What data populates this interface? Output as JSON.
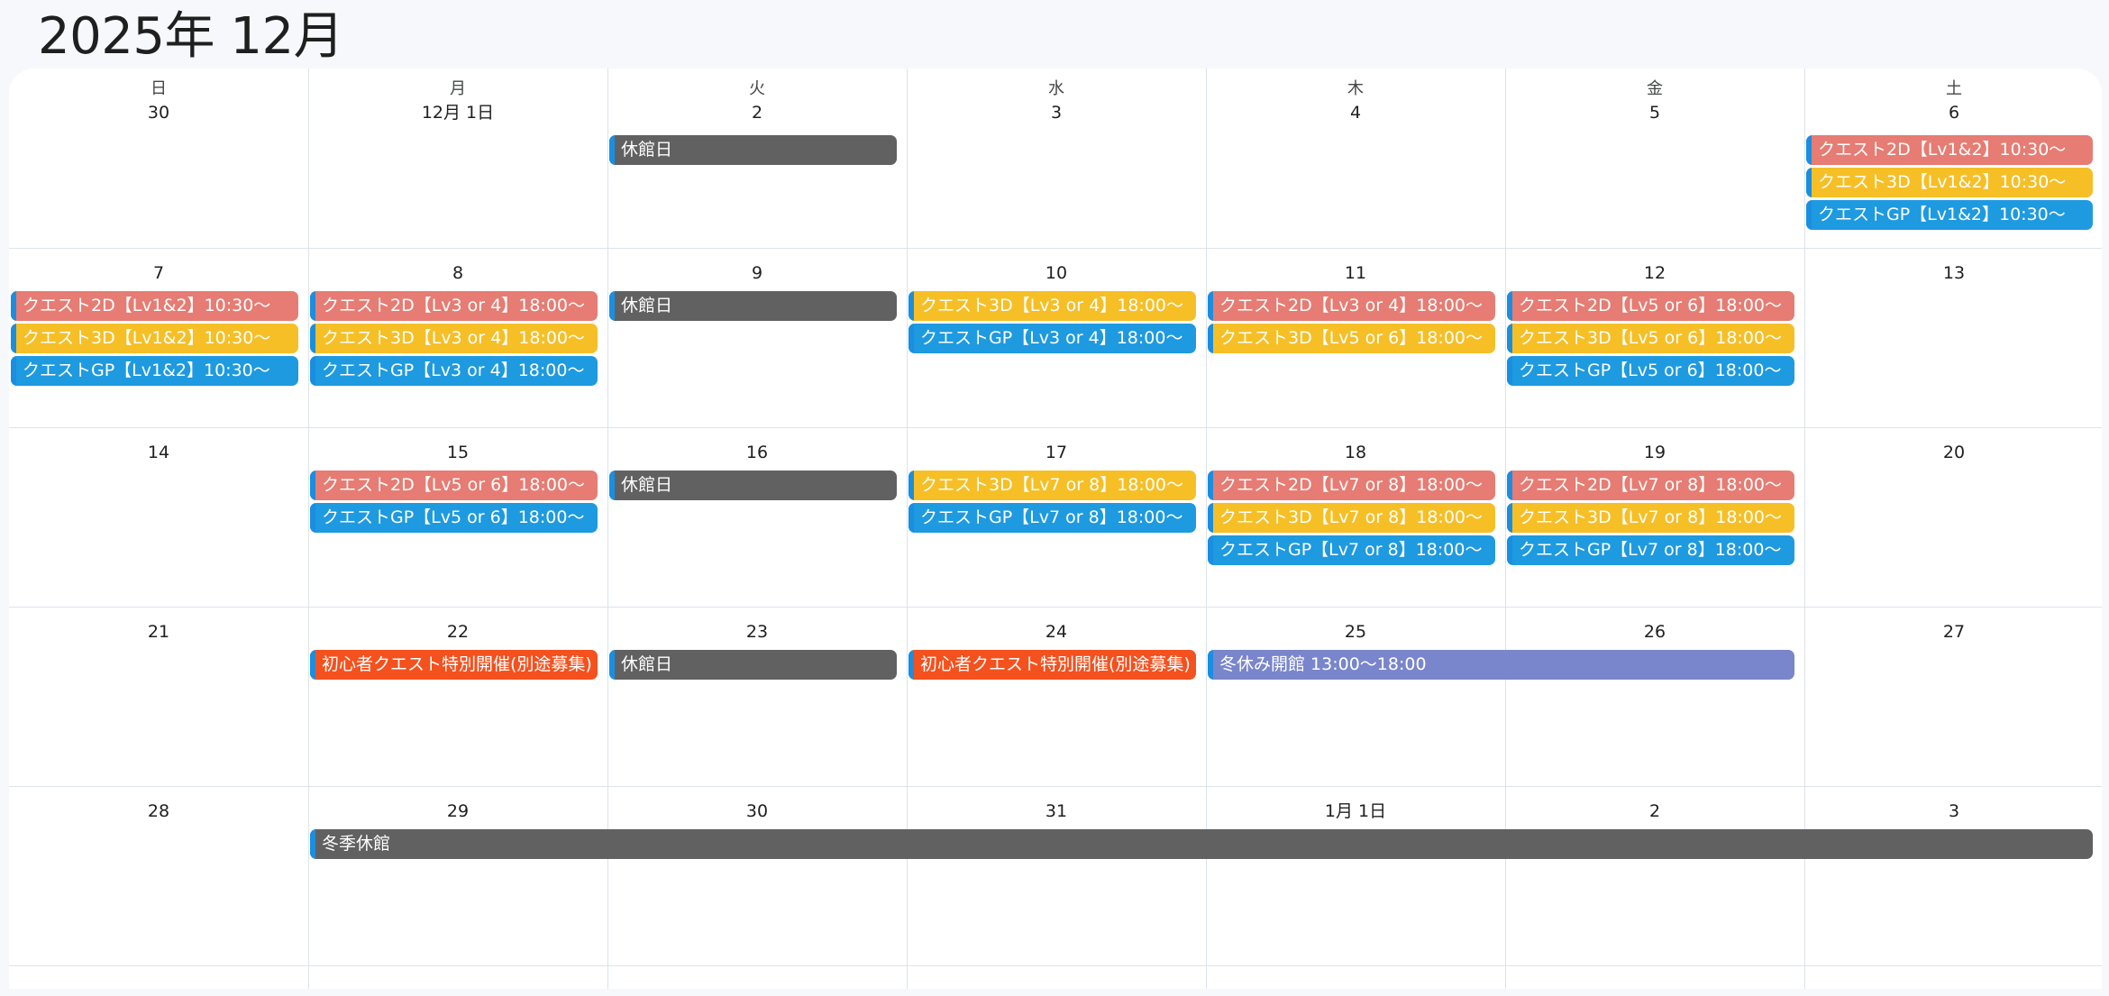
{
  "header": {
    "title": "2025年 12月"
  },
  "colors": {
    "quest_2d": "#e67c73",
    "quest_3d": "#f6bf26",
    "quest_gp": "#1e9ae0",
    "closed": "#616161",
    "beginner": "#f4511e",
    "winter_open": "#7986cb",
    "accent_stripe": "#1a8ee0"
  },
  "weekdays": [
    "日",
    "月",
    "火",
    "水",
    "木",
    "金",
    "土"
  ],
  "weeks": [
    {
      "days": [
        "30",
        "12月 1日",
        "2",
        "3",
        "4",
        "5",
        "6"
      ]
    },
    {
      "days": [
        "7",
        "8",
        "9",
        "10",
        "11",
        "12",
        "13"
      ]
    },
    {
      "days": [
        "14",
        "15",
        "16",
        "17",
        "18",
        "19",
        "20"
      ]
    },
    {
      "days": [
        "21",
        "22",
        "23",
        "24",
        "25",
        "26",
        "27"
      ]
    },
    {
      "days": [
        "28",
        "29",
        "30",
        "31",
        "1月 1日",
        "2",
        "3"
      ]
    }
  ],
  "events": [
    {
      "title": "休館日",
      "kind": "closed",
      "week": 0,
      "col": 2,
      "span": 1,
      "slot": 0
    },
    {
      "title": "クエスト2D【Lv1&2】10:30〜",
      "kind": "quest_2d",
      "week": 0,
      "col": 6,
      "span": 1,
      "slot": 0
    },
    {
      "title": "クエスト3D【Lv1&2】10:30〜",
      "kind": "quest_3d",
      "week": 0,
      "col": 6,
      "span": 1,
      "slot": 1
    },
    {
      "title": "クエストGP【Lv1&2】10:30〜",
      "kind": "quest_gp",
      "week": 0,
      "col": 6,
      "span": 1,
      "slot": 2
    },
    {
      "title": "クエスト2D【Lv1&2】10:30〜",
      "kind": "quest_2d",
      "week": 1,
      "col": 0,
      "span": 1,
      "slot": 0
    },
    {
      "title": "クエスト3D【Lv1&2】10:30〜",
      "kind": "quest_3d",
      "week": 1,
      "col": 0,
      "span": 1,
      "slot": 1
    },
    {
      "title": "クエストGP【Lv1&2】10:30〜",
      "kind": "quest_gp",
      "week": 1,
      "col": 0,
      "span": 1,
      "slot": 2
    },
    {
      "title": "クエスト2D【Lv3 or 4】18:00〜",
      "kind": "quest_2d",
      "week": 1,
      "col": 1,
      "span": 1,
      "slot": 0
    },
    {
      "title": "クエスト3D【Lv3 or 4】18:00〜",
      "kind": "quest_3d",
      "week": 1,
      "col": 1,
      "span": 1,
      "slot": 1
    },
    {
      "title": "クエストGP【Lv3 or 4】18:00〜",
      "kind": "quest_gp",
      "week": 1,
      "col": 1,
      "span": 1,
      "slot": 2
    },
    {
      "title": "休館日",
      "kind": "closed",
      "week": 1,
      "col": 2,
      "span": 1,
      "slot": 0
    },
    {
      "title": "クエスト3D【Lv3 or 4】18:00〜",
      "kind": "quest_3d",
      "week": 1,
      "col": 3,
      "span": 1,
      "slot": 0
    },
    {
      "title": "クエストGP【Lv3 or 4】18:00〜",
      "kind": "quest_gp",
      "week": 1,
      "col": 3,
      "span": 1,
      "slot": 1
    },
    {
      "title": "クエスト2D【Lv3 or 4】18:00〜",
      "kind": "quest_2d",
      "week": 1,
      "col": 4,
      "span": 1,
      "slot": 0
    },
    {
      "title": "クエスト3D【Lv5 or 6】18:00〜",
      "kind": "quest_3d",
      "week": 1,
      "col": 4,
      "span": 1,
      "slot": 1
    },
    {
      "title": "クエスト2D【Lv5 or 6】18:00〜",
      "kind": "quest_2d",
      "week": 1,
      "col": 5,
      "span": 1,
      "slot": 0
    },
    {
      "title": "クエスト3D【Lv5 or 6】18:00〜",
      "kind": "quest_3d",
      "week": 1,
      "col": 5,
      "span": 1,
      "slot": 1
    },
    {
      "title": "クエストGP【Lv5 or 6】18:00〜",
      "kind": "quest_gp",
      "week": 1,
      "col": 5,
      "span": 1,
      "slot": 2
    },
    {
      "title": "クエスト2D【Lv5 or 6】18:00〜",
      "kind": "quest_2d",
      "week": 2,
      "col": 1,
      "span": 1,
      "slot": 0
    },
    {
      "title": "クエストGP【Lv5 or 6】18:00〜",
      "kind": "quest_gp",
      "week": 2,
      "col": 1,
      "span": 1,
      "slot": 1
    },
    {
      "title": "休館日",
      "kind": "closed",
      "week": 2,
      "col": 2,
      "span": 1,
      "slot": 0
    },
    {
      "title": "クエスト3D【Lv7 or 8】18:00〜",
      "kind": "quest_3d",
      "week": 2,
      "col": 3,
      "span": 1,
      "slot": 0
    },
    {
      "title": "クエストGP【Lv7 or 8】18:00〜",
      "kind": "quest_gp",
      "week": 2,
      "col": 3,
      "span": 1,
      "slot": 1
    },
    {
      "title": "クエスト2D【Lv7 or 8】18:00〜",
      "kind": "quest_2d",
      "week": 2,
      "col": 4,
      "span": 1,
      "slot": 0
    },
    {
      "title": "クエスト3D【Lv7 or 8】18:00〜",
      "kind": "quest_3d",
      "week": 2,
      "col": 4,
      "span": 1,
      "slot": 1
    },
    {
      "title": "クエストGP【Lv7 or 8】18:00〜",
      "kind": "quest_gp",
      "week": 2,
      "col": 4,
      "span": 1,
      "slot": 2
    },
    {
      "title": "クエスト2D【Lv7 or 8】18:00〜",
      "kind": "quest_2d",
      "week": 2,
      "col": 5,
      "span": 1,
      "slot": 0
    },
    {
      "title": "クエスト3D【Lv7 or 8】18:00〜",
      "kind": "quest_3d",
      "week": 2,
      "col": 5,
      "span": 1,
      "slot": 1
    },
    {
      "title": "クエストGP【Lv7 or 8】18:00〜",
      "kind": "quest_gp",
      "week": 2,
      "col": 5,
      "span": 1,
      "slot": 2
    },
    {
      "title": "初心者クエスト特別開催(別途募集)",
      "kind": "beginner",
      "week": 3,
      "col": 1,
      "span": 1,
      "slot": 0
    },
    {
      "title": "休館日",
      "kind": "closed",
      "week": 3,
      "col": 2,
      "span": 1,
      "slot": 0
    },
    {
      "title": "初心者クエスト特別開催(別途募集)",
      "kind": "beginner",
      "week": 3,
      "col": 3,
      "span": 1,
      "slot": 0
    },
    {
      "title": "冬休み開館 13:00〜18:00",
      "kind": "winter_open",
      "week": 3,
      "col": 4,
      "span": 2,
      "slot": 0
    },
    {
      "title": "冬季休館",
      "kind": "closed",
      "week": 4,
      "col": 1,
      "span": 6,
      "slot": 0
    }
  ]
}
